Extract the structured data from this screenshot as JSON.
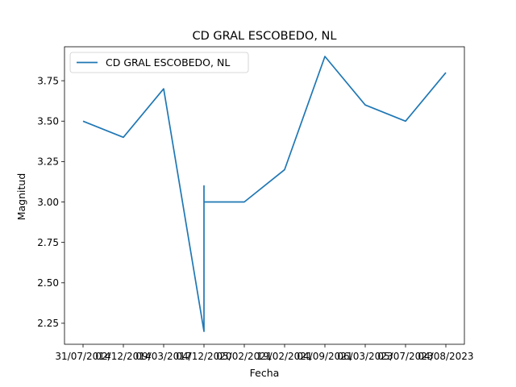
{
  "chart_data": {
    "type": "line",
    "title": "CD GRAL ESCOBEDO, NL",
    "xlabel": "Fecha",
    "ylabel": "Magnitud",
    "x_ticks": [
      "31/07/2014",
      "02/12/2014",
      "09/03/2017",
      "04/12/2020",
      "05/02/2021",
      "19/02/2021",
      "04/09/2021",
      "06/03/2023",
      "05/07/2023",
      "04/08/2023"
    ],
    "y_ticks": [
      "2.25",
      "2.50",
      "2.75",
      "3.00",
      "3.25",
      "3.50",
      "3.75"
    ],
    "ylim": [
      2.12,
      3.96
    ],
    "grid": false,
    "legend_position": "upper-left",
    "series": [
      {
        "name": "CD GRAL ESCOBEDO, NL",
        "color": "#1f77b4",
        "points": [
          {
            "x": "31/07/2014",
            "y": 3.5
          },
          {
            "x": "02/12/2014",
            "y": 3.4
          },
          {
            "x": "09/03/2017",
            "y": 3.7
          },
          {
            "x": "04/12/2020",
            "y": 2.2
          },
          {
            "x": "04/12/2020",
            "y": 3.1
          },
          {
            "x": "04/12/2020",
            "y": 3.0
          },
          {
            "x": "05/02/2021",
            "y": 3.0
          },
          {
            "x": "19/02/2021",
            "y": 3.2
          },
          {
            "x": "04/09/2021",
            "y": 3.9
          },
          {
            "x": "06/03/2023",
            "y": 3.6
          },
          {
            "x": "05/07/2023",
            "y": 3.5
          },
          {
            "x": "04/08/2023",
            "y": 3.8
          }
        ]
      }
    ]
  }
}
